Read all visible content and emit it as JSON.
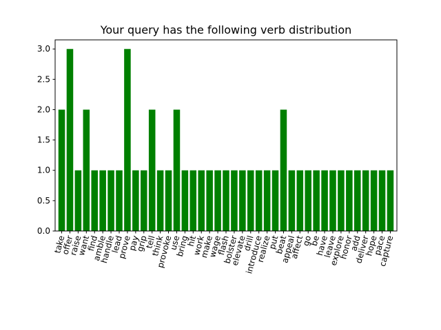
{
  "chart_data": {
    "type": "bar",
    "title": "Your query has the following verb distribution",
    "xlabel": "",
    "ylabel": "",
    "categories": [
      "take",
      "offer",
      "raise",
      "want",
      "find",
      "amble",
      "handle",
      "lead",
      "prove",
      "pay",
      "grip",
      "tell",
      "think",
      "provoke",
      "use",
      "bring",
      "hit",
      "work",
      "make",
      "wage",
      "flash",
      "bolster",
      "elevate",
      "drill",
      "introduce",
      "realize",
      "put",
      "beat",
      "appeal",
      "affect",
      "go",
      "be",
      "have",
      "leave",
      "explore",
      "honor",
      "add",
      "deliver",
      "hope",
      "pace",
      "capture"
    ],
    "values": [
      2,
      3,
      1,
      2,
      1,
      1,
      1,
      1,
      3,
      1,
      1,
      2,
      1,
      1,
      2,
      1,
      1,
      1,
      1,
      1,
      1,
      1,
      1,
      1,
      1,
      1,
      1,
      2,
      1,
      1,
      1,
      1,
      1,
      1,
      1,
      1,
      1,
      1,
      1,
      1,
      1
    ],
    "ylim": [
      0,
      3.15
    ],
    "yticks": [
      0.0,
      0.5,
      1.0,
      1.5,
      2.0,
      2.5,
      3.0
    ],
    "ytick_labels": [
      "0.0",
      "0.5",
      "1.0",
      "1.5",
      "2.0",
      "2.5",
      "3.0"
    ],
    "bar_color": "#008000",
    "grid": false,
    "legend": "none"
  }
}
